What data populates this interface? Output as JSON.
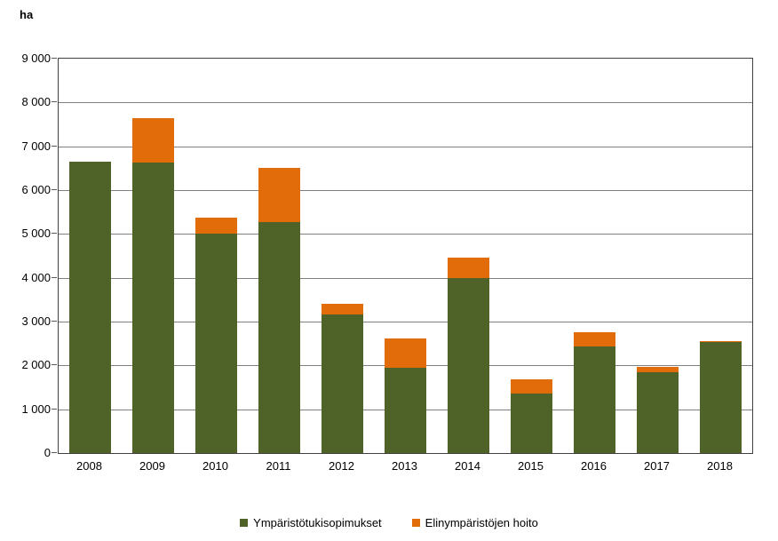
{
  "unit_label": "ha",
  "colors": {
    "series_green": "#4F6228",
    "series_orange": "#E36C0A",
    "gridline": "#808080",
    "plot_border": "#404040",
    "text": "#000000"
  },
  "chart_data": {
    "type": "bar",
    "stacked": true,
    "title": "ha",
    "ylabel": "ha",
    "xlabel": "",
    "grid": true,
    "legend_position": "bottom",
    "ylim": [
      0,
      9000
    ],
    "ytick_step": 1000,
    "ytick_labels": [
      "0",
      "1 000",
      "2 000",
      "3 000",
      "4 000",
      "5 000",
      "6 000",
      "7 000",
      "8 000",
      "9 000"
    ],
    "categories": [
      "2008",
      "2009",
      "2010",
      "2011",
      "2012",
      "2013",
      "2014",
      "2015",
      "2016",
      "2017",
      "2018"
    ],
    "series": [
      {
        "name": "Ympäristötukisopimukset",
        "color": "#4F6228",
        "values": [
          6650,
          6630,
          5000,
          5280,
          3160,
          1950,
          4000,
          1360,
          2430,
          1840,
          2530
        ]
      },
      {
        "name": "Elinympäristöjen hoito",
        "color": "#E36C0A",
        "values": [
          0,
          1010,
          370,
          1220,
          240,
          670,
          470,
          320,
          320,
          120,
          30
        ]
      }
    ],
    "totals": [
      6650,
      7640,
      5370,
      6500,
      3400,
      2620,
      4470,
      1680,
      2750,
      1960,
      2560
    ]
  }
}
